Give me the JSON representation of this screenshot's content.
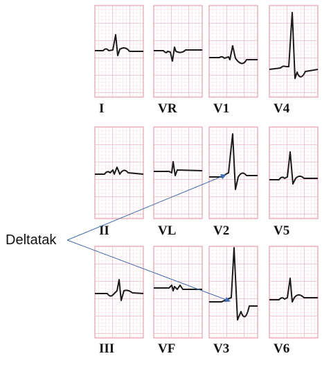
{
  "leads": [
    "I",
    "VR",
    "V1",
    "V4",
    "II",
    "VL",
    "V2",
    "V5",
    "III",
    "VF",
    "V3",
    "V6"
  ],
  "annotation": "Deltatak"
}
